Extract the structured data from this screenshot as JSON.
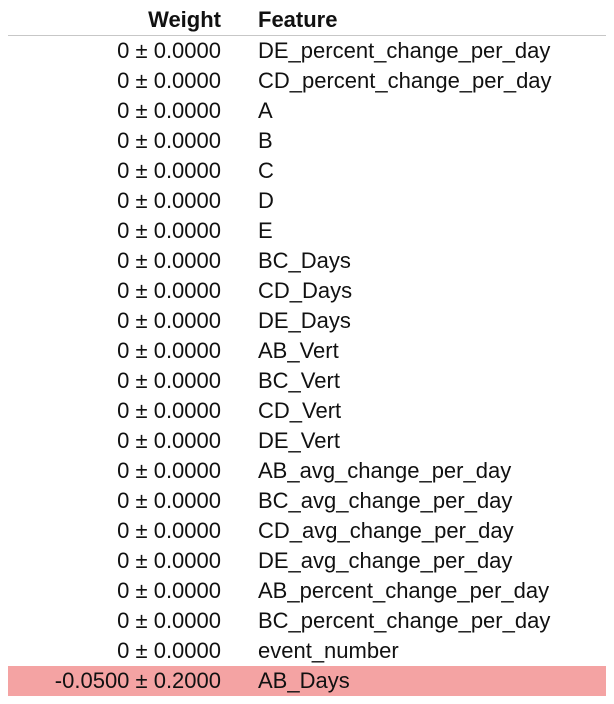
{
  "header": {
    "weight_label": "Weight",
    "feature_label": "Feature"
  },
  "rows": [
    {
      "weight": "0 ± 0.0000",
      "feature": "DE_percent_change_per_day",
      "bg": "#ffffff"
    },
    {
      "weight": "0 ± 0.0000",
      "feature": "CD_percent_change_per_day",
      "bg": "#ffffff"
    },
    {
      "weight": "0 ± 0.0000",
      "feature": "A",
      "bg": "#ffffff"
    },
    {
      "weight": "0 ± 0.0000",
      "feature": "B",
      "bg": "#ffffff"
    },
    {
      "weight": "0 ± 0.0000",
      "feature": "C",
      "bg": "#ffffff"
    },
    {
      "weight": "0 ± 0.0000",
      "feature": "D",
      "bg": "#ffffff"
    },
    {
      "weight": "0 ± 0.0000",
      "feature": "E",
      "bg": "#ffffff"
    },
    {
      "weight": "0 ± 0.0000",
      "feature": "BC_Days",
      "bg": "#ffffff"
    },
    {
      "weight": "0 ± 0.0000",
      "feature": "CD_Days",
      "bg": "#ffffff"
    },
    {
      "weight": "0 ± 0.0000",
      "feature": "DE_Days",
      "bg": "#ffffff"
    },
    {
      "weight": "0 ± 0.0000",
      "feature": "AB_Vert",
      "bg": "#ffffff"
    },
    {
      "weight": "0 ± 0.0000",
      "feature": "BC_Vert",
      "bg": "#ffffff"
    },
    {
      "weight": "0 ± 0.0000",
      "feature": "CD_Vert",
      "bg": "#ffffff"
    },
    {
      "weight": "0 ± 0.0000",
      "feature": "DE_Vert",
      "bg": "#ffffff"
    },
    {
      "weight": "0 ± 0.0000",
      "feature": "AB_avg_change_per_day",
      "bg": "#ffffff"
    },
    {
      "weight": "0 ± 0.0000",
      "feature": "BC_avg_change_per_day",
      "bg": "#ffffff"
    },
    {
      "weight": "0 ± 0.0000",
      "feature": "CD_avg_change_per_day",
      "bg": "#ffffff"
    },
    {
      "weight": "0 ± 0.0000",
      "feature": "DE_avg_change_per_day",
      "bg": "#ffffff"
    },
    {
      "weight": "0 ± 0.0000",
      "feature": "AB_percent_change_per_day",
      "bg": "#ffffff"
    },
    {
      "weight": "0 ± 0.0000",
      "feature": "BC_percent_change_per_day",
      "bg": "#ffffff"
    },
    {
      "weight": "0 ± 0.0000",
      "feature": "event_number",
      "bg": "#ffffff"
    },
    {
      "weight": "-0.0500 ± 0.2000",
      "feature": "AB_Days",
      "bg": "#f4a3a3"
    }
  ]
}
